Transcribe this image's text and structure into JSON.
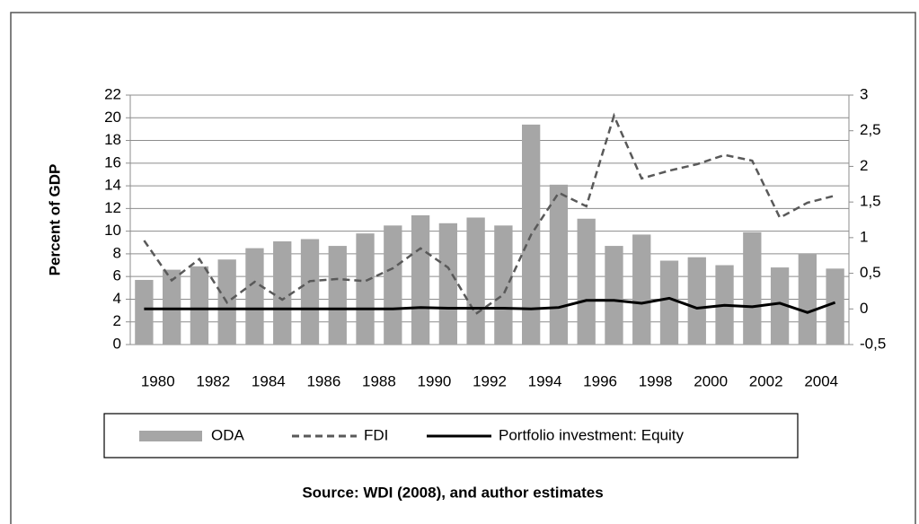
{
  "chart_data": {
    "type": "bar-line",
    "y_label": "Percent of GDP",
    "source": "Source: WDI (2008), and author estimates",
    "categories": [
      "1980",
      null,
      "1982",
      null,
      "1984",
      null,
      "1986",
      null,
      "1988",
      null,
      "1990",
      null,
      "1992",
      null,
      "1994",
      null,
      "1996",
      null,
      "1998",
      null,
      "2000",
      null,
      "2002",
      null,
      "2004",
      null
    ],
    "series": [
      {
        "name": "ODA",
        "type": "bar",
        "color": "#a6a6a6",
        "axis": "y",
        "values": [
          5.7,
          6.6,
          6.9,
          7.5,
          8.5,
          9.1,
          9.3,
          8.7,
          9.8,
          10.5,
          11.4,
          10.7,
          11.2,
          10.5,
          19.4,
          14.1,
          11.1,
          8.7,
          9.7,
          7.4,
          7.7,
          7.0,
          9.9,
          6.8,
          8.0,
          6.7
        ]
      },
      {
        "name": "FDI",
        "type": "line",
        "color": "#595959",
        "line_style": "dashed",
        "axis": "y2",
        "values": [
          0.96,
          0.4,
          0.7,
          0.09,
          0.38,
          0.13,
          0.39,
          0.42,
          0.39,
          0.57,
          0.85,
          0.58,
          -0.07,
          0.2,
          1.04,
          1.63,
          1.44,
          2.71,
          1.83,
          1.94,
          2.03,
          2.16,
          2.08,
          1.28,
          1.49,
          1.59
        ]
      },
      {
        "name": "Portfolio investment: Equity",
        "type": "line",
        "color": "#000000",
        "line_style": "solid",
        "axis": "y2",
        "values": [
          0,
          0,
          0,
          0,
          0,
          0,
          0,
          0,
          0,
          0,
          0.02,
          0.01,
          0.01,
          0.01,
          0,
          0.02,
          0.12,
          0.12,
          0.08,
          0.15,
          0.01,
          0.05,
          0.03,
          0.08,
          -0.05,
          0.09
        ]
      }
    ],
    "ylim": [
      0,
      22
    ],
    "yticks": [
      0,
      2,
      4,
      6,
      8,
      10,
      12,
      14,
      16,
      18,
      20,
      22
    ],
    "y2lim": [
      -0.5,
      3
    ],
    "y2ticks": [
      {
        "value": -0.5,
        "label": "-0,5"
      },
      0,
      {
        "value": 0.5,
        "label": "0,5"
      },
      1,
      {
        "value": 1.5,
        "label": "1,5"
      },
      2,
      {
        "value": 2.5,
        "label": "2,5"
      },
      3
    ],
    "grid": true,
    "legend": "bottom"
  }
}
